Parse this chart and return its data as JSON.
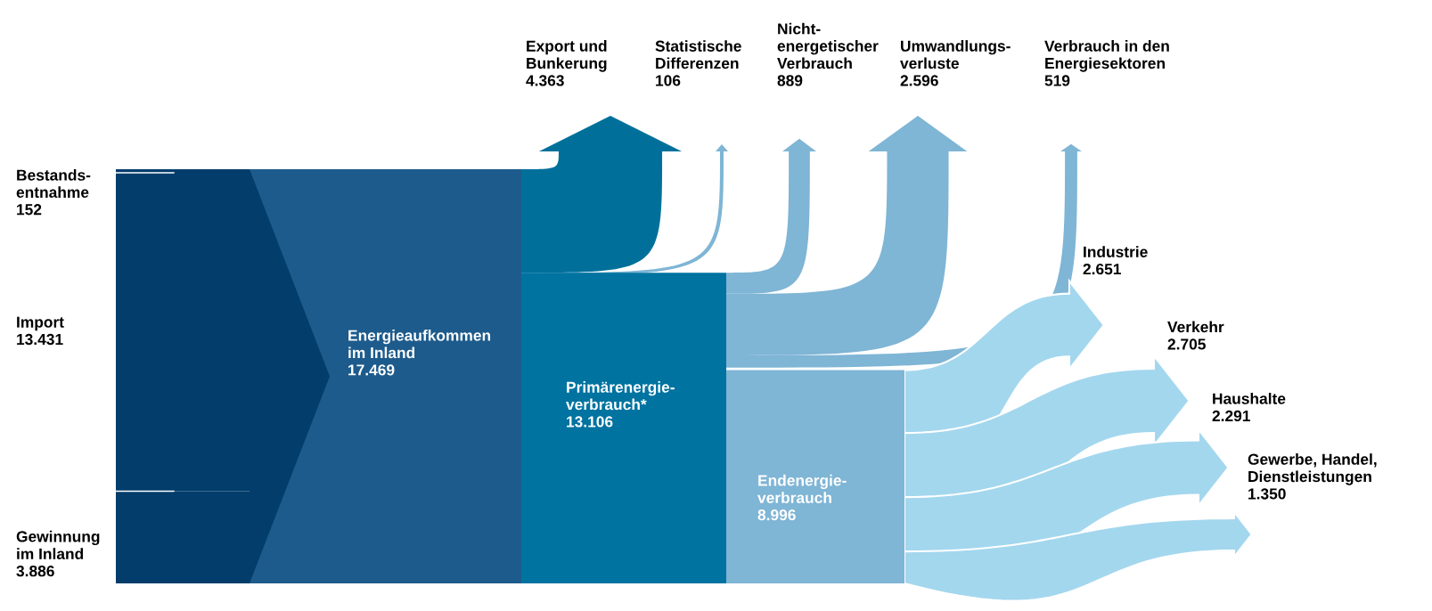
{
  "chart_data": {
    "type": "other",
    "categories": [
      "Bestands-\nentnahme",
      "Import",
      "Gewinnung\nim Inland",
      "Energieaufkommen\nim Inland",
      "Primärenergie-\nverbrauch*",
      "Endenergie-\nverbrauch",
      "Export und\nBunkerung",
      "Statistische\nDifferenzen",
      "Nicht-\nenergetischer\nVerbrauch",
      "Umwandlungs-\nverluste",
      "Verbrauch in den\nEnergiesektoren",
      "Industrie",
      "Verkehr",
      "Haushalte",
      "Gewerbe, Handel,\nDienstleistungen"
    ],
    "values": [
      152,
      13431,
      3886,
      17469,
      13106,
      8996,
      4363,
      106,
      889,
      2596,
      519,
      2651,
      2705,
      2291,
      1350
    ],
    "value_labels": [
      "152",
      "13.431",
      "3.886",
      "17.469",
      "13.106",
      "8.996",
      "4.363",
      "106",
      "889",
      "2.596",
      "519",
      "2.651",
      "2.705",
      "2.291",
      "1.350"
    ],
    "colors": [
      "#023d6b",
      "#023d6b",
      "#023d6b",
      "#1d5b8c",
      "#0073a0",
      "#7fb5d5",
      "#00709b",
      "#7fb5d5",
      "#7fb5d5",
      "#7fb5d5",
      "#7fb5d5",
      "#a3d7ee",
      "#a3d7ee",
      "#a3d7ee",
      "#a3d7ee"
    ]
  }
}
